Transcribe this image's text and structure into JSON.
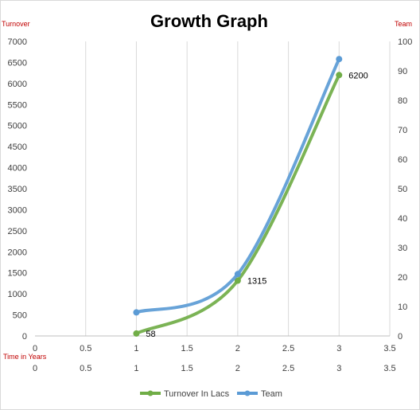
{
  "chart_data": {
    "type": "line",
    "title": "Growth Graph",
    "xlabel": "Time in Years",
    "ylabel": "Turnover",
    "y2label": "Team",
    "xlim": [
      0,
      3.5
    ],
    "x_ticks": [
      "0",
      "0.5",
      "1",
      "1.5",
      "2",
      "2.5",
      "3",
      "3.5"
    ],
    "ylim": [
      0,
      7000
    ],
    "y_ticks": [
      "0",
      "500",
      "1000",
      "1500",
      "2000",
      "2500",
      "3000",
      "3500",
      "4000",
      "4500",
      "5000",
      "5500",
      "6000",
      "6500",
      "7000"
    ],
    "y2lim": [
      0,
      100
    ],
    "y2_ticks": [
      "0",
      "10",
      "20",
      "30",
      "40",
      "50",
      "60",
      "70",
      "80",
      "90",
      "100"
    ],
    "grid": "vertical",
    "legend": "bottom",
    "series": [
      {
        "name": "Turnover In Lacs",
        "axis": "left",
        "color": "#70ad47",
        "x": [
          1,
          2,
          3
        ],
        "y": [
          58,
          1315,
          6200
        ],
        "labels": [
          "58",
          "1315",
          "6200"
        ]
      },
      {
        "name": "Team",
        "axis": "right",
        "color": "#5b9bd5",
        "x": [
          1,
          2,
          3
        ],
        "y": [
          8,
          21,
          94
        ]
      }
    ]
  }
}
